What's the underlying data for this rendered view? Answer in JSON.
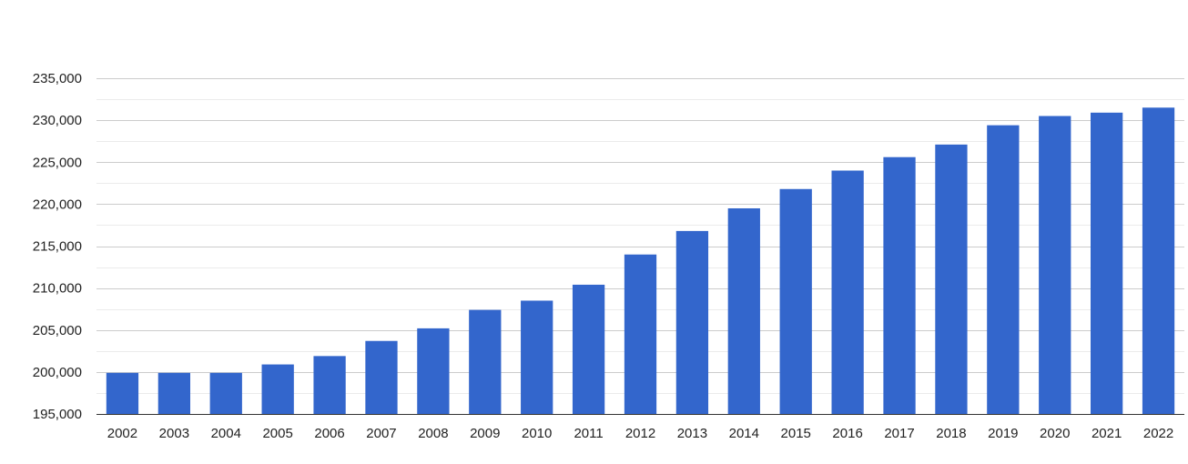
{
  "chart_data": {
    "type": "bar",
    "title": "",
    "xlabel": "",
    "ylabel": "",
    "categories": [
      "2002",
      "2003",
      "2004",
      "2005",
      "2006",
      "2007",
      "2008",
      "2009",
      "2010",
      "2011",
      "2012",
      "2013",
      "2014",
      "2015",
      "2016",
      "2017",
      "2018",
      "2019",
      "2020",
      "2021",
      "2022"
    ],
    "values": [
      199900,
      199900,
      199900,
      200900,
      201900,
      203700,
      205200,
      207400,
      208500,
      210400,
      214000,
      216800,
      219500,
      221800,
      224000,
      225600,
      227100,
      229400,
      230500,
      230900,
      231500
    ],
    "ylim": [
      195000,
      235000
    ],
    "yticks": [
      195000,
      200000,
      205000,
      210000,
      215000,
      220000,
      225000,
      230000,
      235000
    ],
    "ytick_labels": [
      "195,000",
      "200,000",
      "205,000",
      "210,000",
      "215,000",
      "220,000",
      "225,000",
      "230,000",
      "235,000"
    ],
    "grid": true,
    "legend": "none",
    "bar_color": "#3366cc",
    "grid_color": "#cccccc",
    "minor_grid_color": "#ebebeb"
  }
}
